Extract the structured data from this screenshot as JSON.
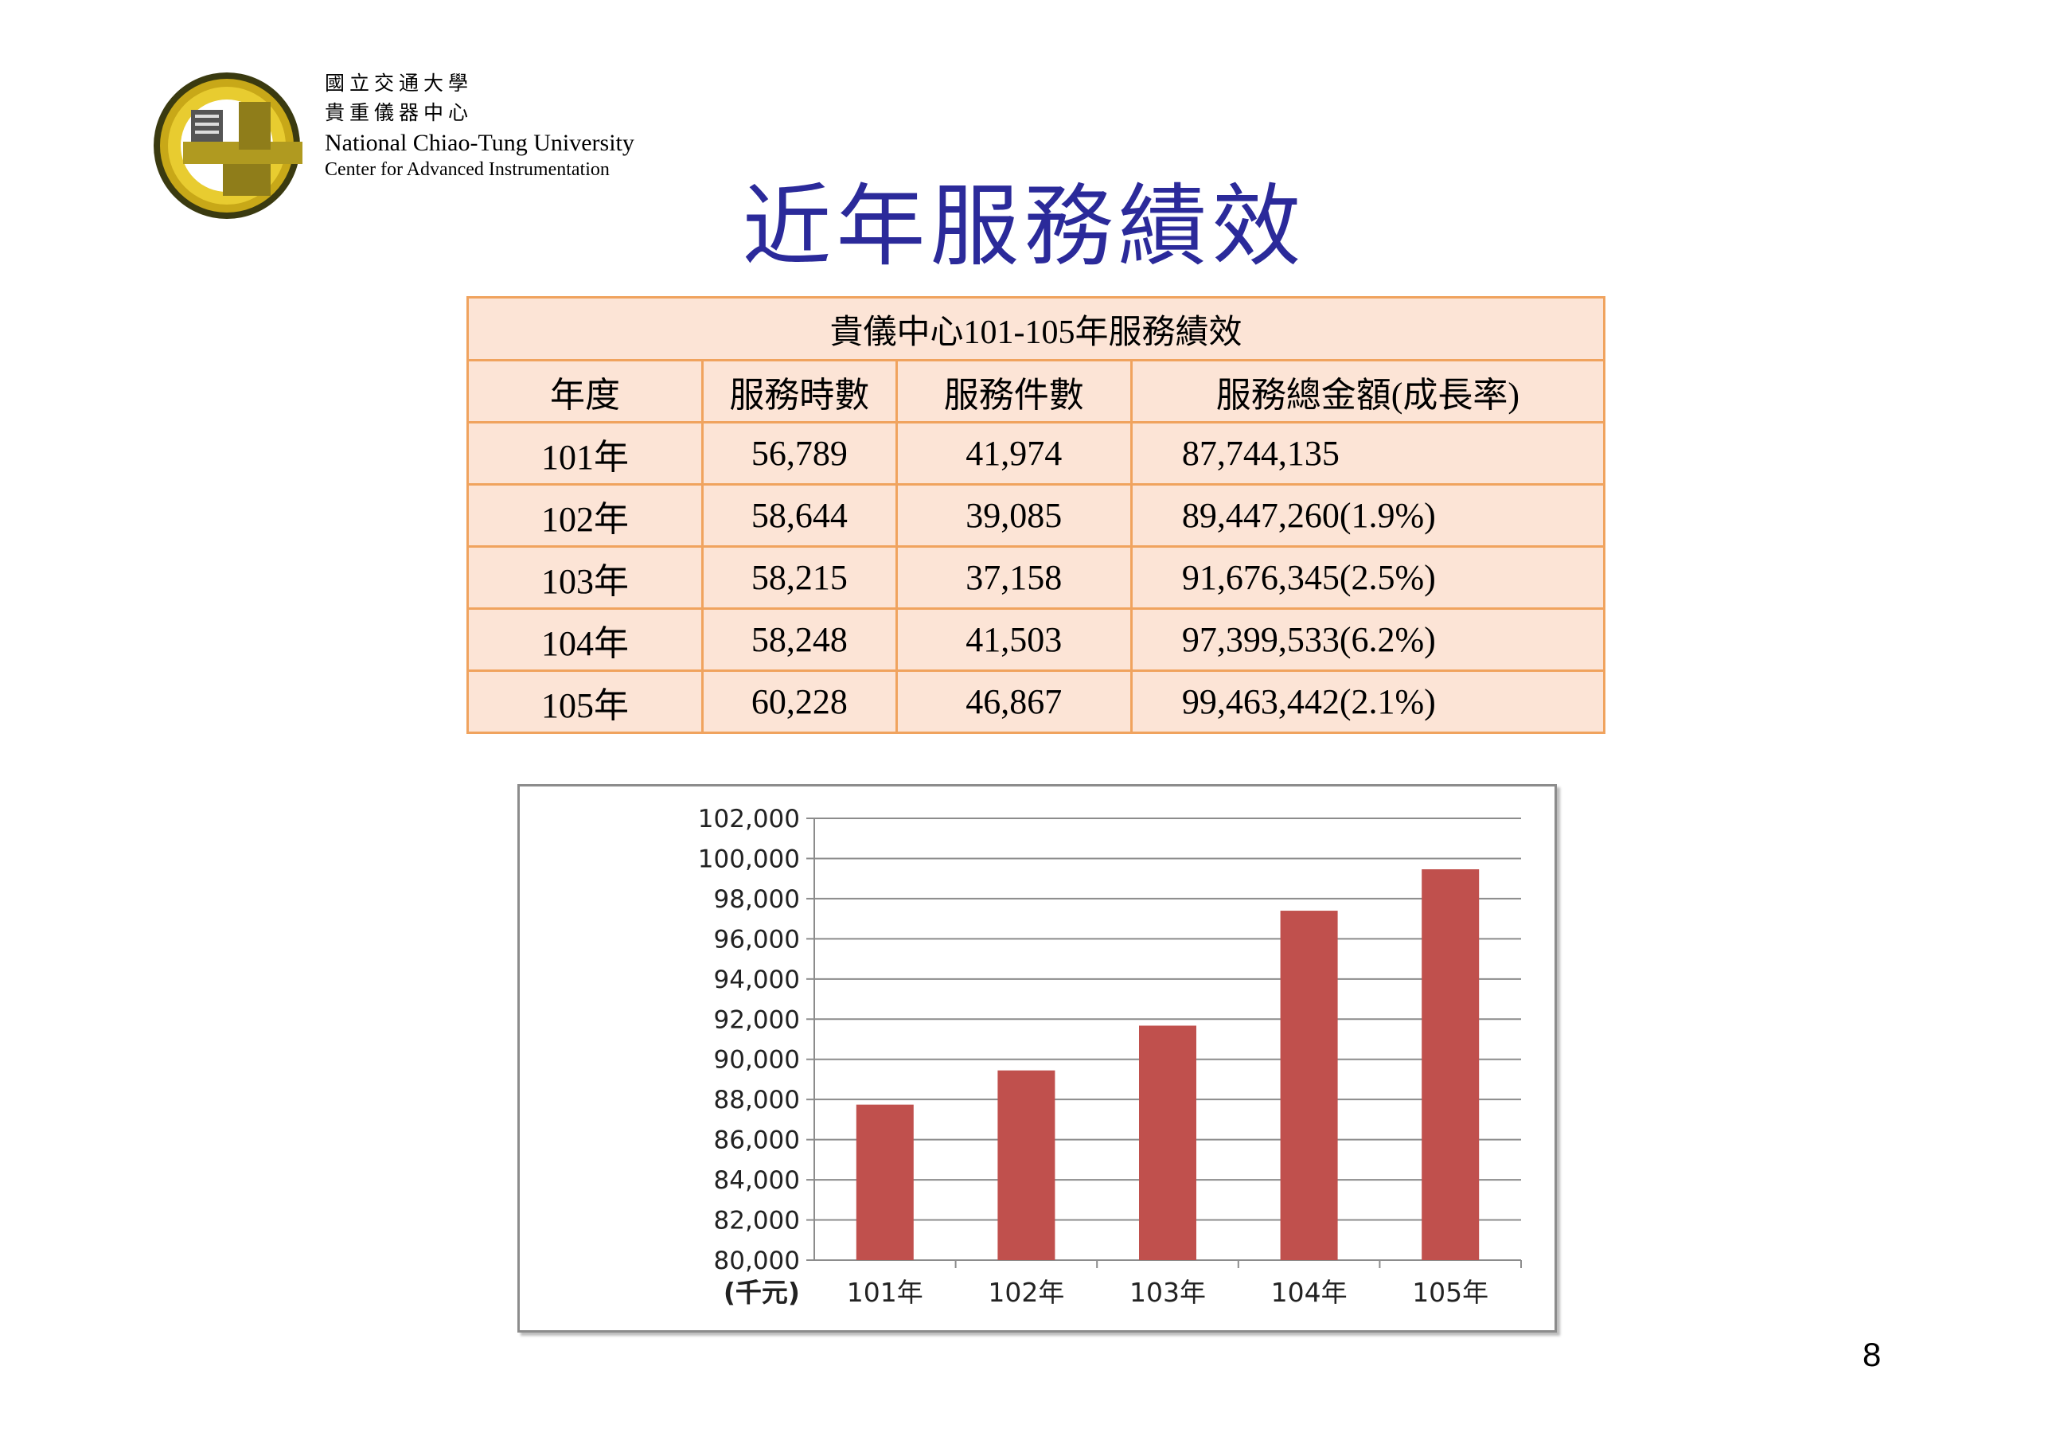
{
  "header": {
    "org_cn_line1": "國立交通大學",
    "org_cn_line2": "貴重儀器中心",
    "org_en_line1": "National Chiao-Tung University",
    "org_en_line2": "Center for Advanced Instrumentation"
  },
  "slide": {
    "title": "近年服務績效",
    "page_number": "8"
  },
  "table": {
    "caption": "貴儀中心101-105年服務績效",
    "headers": [
      "年度",
      "服務時數",
      "服務件數",
      "服務總金額(成長率)"
    ],
    "rows": [
      [
        "101年",
        "56,789",
        "41,974",
        "87,744,135"
      ],
      [
        "102年",
        "58,644",
        "39,085",
        "89,447,260(1.9%)"
      ],
      [
        "103年",
        "58,215",
        "37,158",
        "91,676,345(2.5%)"
      ],
      [
        "104年",
        "58,248",
        "41,503",
        "97,399,533(6.2%)"
      ],
      [
        "105年",
        "60,228",
        "46,867",
        "99,463,442(2.1%)"
      ]
    ]
  },
  "chart_data": {
    "type": "bar",
    "categories": [
      "101年",
      "102年",
      "103年",
      "104年",
      "105年"
    ],
    "values": [
      87744,
      89447,
      91676,
      97400,
      99463
    ],
    "title": "",
    "xlabel": "",
    "ylabel": "(千元)",
    "ylim": [
      80000,
      102000
    ],
    "yticks": [
      "80,000",
      "82,000",
      "84,000",
      "86,000",
      "88,000",
      "90,000",
      "92,000",
      "94,000",
      "96,000",
      "98,000",
      "100,000",
      "102,000"
    ],
    "grid": true,
    "bar_color": "#c0504d"
  }
}
